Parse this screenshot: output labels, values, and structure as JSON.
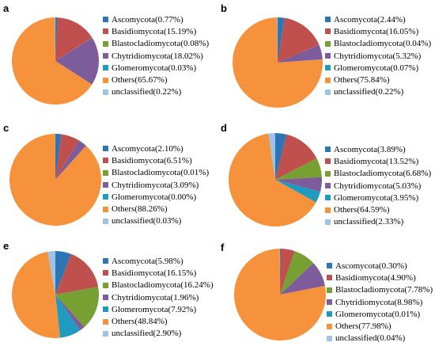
{
  "colors": [
    "#2E75B6",
    "#C0504D",
    "#77A033",
    "#7E5B9A",
    "#1E9BBF",
    "#F7923C",
    "#9DC3E6"
  ],
  "chart_data": [
    {
      "type": "pie",
      "panel": "a",
      "title": "",
      "legend_position": "right",
      "categories": [
        "Ascomycota",
        "Basidiomycota",
        "Blastocladiomycota",
        "Chytridiomycota",
        "Glomeromycota",
        "Others",
        "unclassified"
      ],
      "values": [
        0.77,
        15.19,
        0.08,
        18.02,
        0.03,
        65.67,
        0.22
      ],
      "labels": [
        "Ascomycota(0.77%)",
        "Basidiomycota(15.19%)",
        "Blastocladiomycota(0.08%)",
        "Chytridiomycota(18.02%)",
        "Glomeromycota(0.03%)",
        "Others(65.67%)",
        "unclassified(0.22%)"
      ]
    },
    {
      "type": "pie",
      "panel": "b",
      "title": "",
      "legend_position": "right",
      "categories": [
        "Ascomycota",
        "Basidiomycota",
        "Blastocladiomycota",
        "Chytridiomycota",
        "Glomeromycota",
        "Others",
        "unclassified"
      ],
      "values": [
        2.44,
        16.05,
        0.04,
        5.32,
        0.07,
        75.84,
        0.22
      ],
      "labels": [
        "Ascomycota(2.44%)",
        "Basidiomycota(16.05%)",
        "Blastocladiomycota(0.04%)",
        "Chytridiomycota(5.32%)",
        "Glomeromycota(0.07%)",
        "Others(75.84%)",
        "unclassified(0.22%)"
      ]
    },
    {
      "type": "pie",
      "panel": "c",
      "title": "",
      "legend_position": "right",
      "categories": [
        "Ascomycota",
        "Basidiomycota",
        "Blastocladiomycota",
        "Chytridiomycota",
        "Glomeromycota",
        "Others",
        "unclassified"
      ],
      "values": [
        2.1,
        6.51,
        0.01,
        3.09,
        0.0,
        88.26,
        0.03
      ],
      "labels": [
        "Ascomycota(2.10%)",
        "Basidiomycota(6.51%)",
        "Blastocladiomycota(0.01%)",
        "Chytridiomycota(3.09%)",
        "Glomeromycota(0.00%)",
        "Others(88.26%)",
        "unclassified(0.03%)"
      ]
    },
    {
      "type": "pie",
      "panel": "d",
      "title": "",
      "legend_position": "right",
      "categories": [
        "Ascomycota",
        "Basidiomycota",
        "Blastocladiomycota",
        "Chytridiomycota",
        "Glomeromycota",
        "Others",
        "unclassified"
      ],
      "values": [
        3.89,
        13.52,
        6.68,
        5.03,
        3.95,
        64.59,
        2.33
      ],
      "labels": [
        "Ascomycota(3.89%)",
        "Basidiomycota(13.52%)",
        "Blastocladiomycota(6.68%)",
        "Chytridiomycota(5.03%)",
        "Glomeromycota(3.95%)",
        "Others(64.59%)",
        "unclassified(2.33%)"
      ]
    },
    {
      "type": "pie",
      "panel": "e",
      "title": "",
      "legend_position": "right",
      "categories": [
        "Ascomycota",
        "Basidiomycota",
        "Blastocladiomycota",
        "Chytridiomycota",
        "Glomeromycota",
        "Others",
        "unclassified"
      ],
      "values": [
        5.98,
        16.15,
        16.24,
        1.96,
        7.92,
        48.84,
        2.9
      ],
      "labels": [
        "Ascomycota(5.98%)",
        "Basidiomycota(16.15%)",
        "Blastocladiomycota(16.24%)",
        "Chytridiomycota(1.96%)",
        "Glomeromycota(7.92%)",
        "Others(48.84%)",
        "unclassified(2.90%)"
      ]
    },
    {
      "type": "pie",
      "panel": "f",
      "title": "",
      "legend_position": "right",
      "categories": [
        "Ascomycota",
        "Basidiomycota",
        "Blastocladiomycota",
        "Chytridiomycota",
        "Glomeromycota",
        "Others",
        "unclassified"
      ],
      "values": [
        0.3,
        4.9,
        7.78,
        8.98,
        0.01,
        77.98,
        0.04
      ],
      "labels": [
        "Ascomycota(0.30%)",
        "Basidiomycota(4.90%)",
        "Blastocladiomycota(7.78%)",
        "Chytridiomycota(8.98%)",
        "Glomeromycota(0.01%)",
        "Others(77.98%)",
        "unclassified(0.04%)"
      ]
    }
  ]
}
